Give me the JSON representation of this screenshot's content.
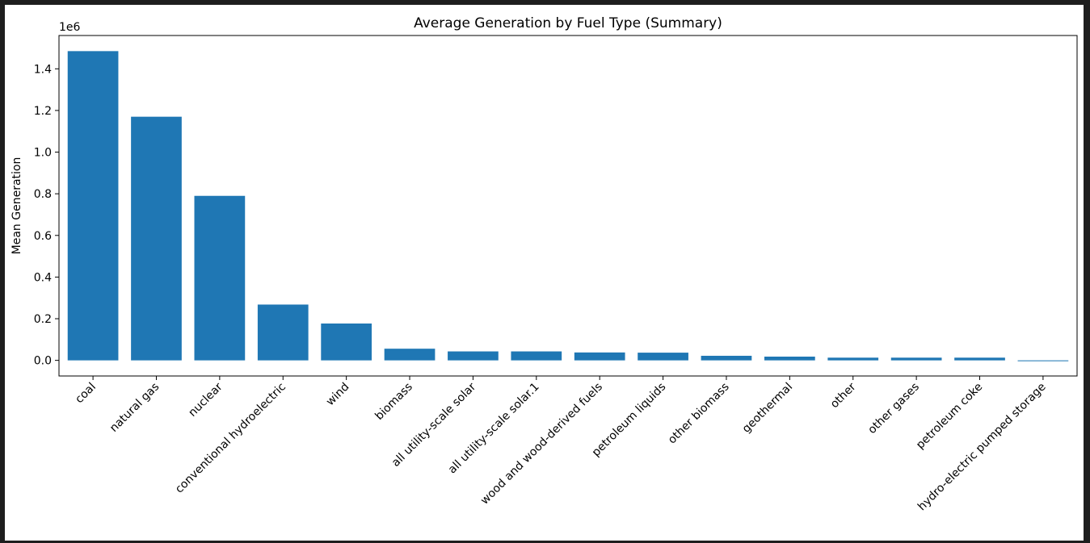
{
  "window": {
    "background": "#1e1e1e"
  },
  "chart_data": {
    "type": "bar",
    "title": "Average Generation by Fuel Type (Summary)",
    "xlabel": "",
    "ylabel": "Mean Generation",
    "y_offset_text": "1e6",
    "bar_color": "#1f77b4",
    "ylim": [
      -0.075,
      1.56
    ],
    "yticks": [
      0.0,
      0.2,
      0.4,
      0.6,
      0.8,
      1.0,
      1.2,
      1.4
    ],
    "ytick_labels": [
      "0.0",
      "0.2",
      "0.4",
      "0.6",
      "0.8",
      "1.0",
      "1.2",
      "1.4"
    ],
    "grid": false,
    "legend": "none",
    "categories": [
      "coal",
      "natural gas",
      "nuclear",
      "conventional hydroelectric",
      "wind",
      "biomass",
      "all utility-scale solar",
      "all utility-scale solar.1",
      "wood and wood-derived fuels",
      "petroleum liquids",
      "other biomass",
      "geothermal",
      "other",
      "other gases",
      "petroleum coke",
      "hydro-electric pumped storage"
    ],
    "values": [
      1.485,
      1.17,
      0.79,
      0.268,
      0.177,
      0.056,
      0.043,
      0.043,
      0.038,
      0.037,
      0.022,
      0.018,
      0.013,
      0.013,
      0.013,
      -0.004
    ]
  }
}
